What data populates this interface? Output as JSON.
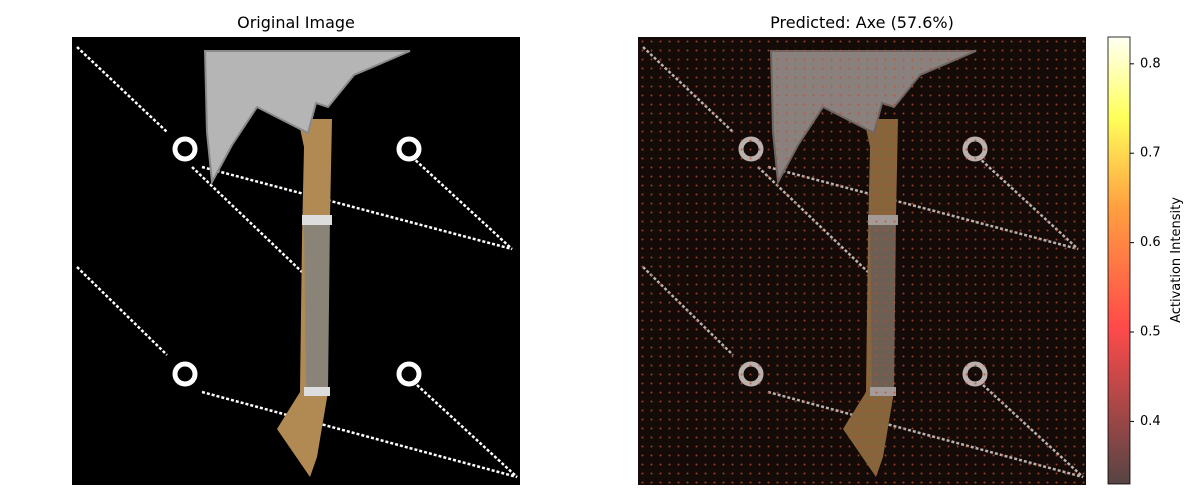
{
  "chart_data": [
    {
      "type": "image",
      "title": "Original Image"
    },
    {
      "type": "image",
      "title": "Predicted: Axe (57.6%)",
      "colorbar": {
        "label": "Activation Intensity",
        "lim": [
          0.33,
          0.83
        ],
        "ticks": [
          0.4,
          0.5,
          0.6,
          0.7,
          0.8
        ]
      }
    }
  ]
}
